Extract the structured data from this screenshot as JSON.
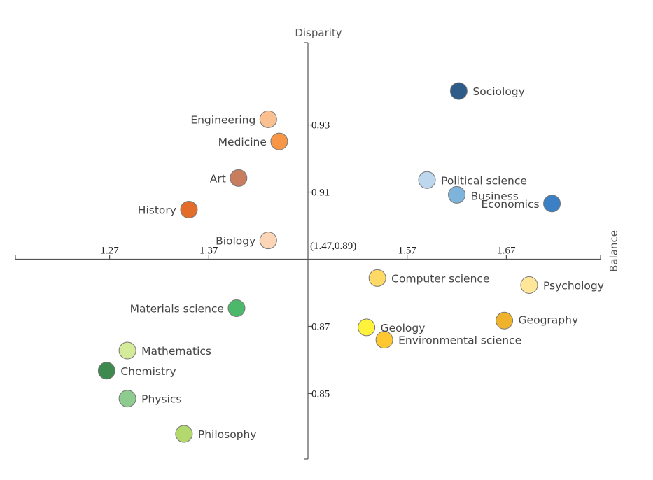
{
  "chart_data": {
    "type": "scatter",
    "xlabel": "Balance",
    "ylabel": "Disparity",
    "origin_label": "(1.47,0.89)",
    "origin": [
      1.47,
      0.89
    ],
    "xlim": [
      1.175,
      1.765
    ],
    "ylim": [
      0.8305,
      0.9545
    ],
    "x_ticks": [
      1.27,
      1.37,
      1.57,
      1.67
    ],
    "x_tick_labels": [
      "1.27",
      "1.37",
      "1.57",
      "1.67"
    ],
    "y_ticks": [
      0.93,
      0.91,
      0.87,
      0.85
    ],
    "y_tick_labels": [
      "0.93",
      "0.91",
      "0.87",
      "0.85"
    ],
    "grid": false,
    "legend": "none",
    "points": [
      {
        "label": "Sociology",
        "x": 1.622,
        "y": 0.9401,
        "color": "#2E5C8A"
      },
      {
        "label": "Engineering",
        "x": 1.43,
        "y": 0.9317,
        "color": "#FAC08F"
      },
      {
        "label": "Medicine",
        "x": 1.441,
        "y": 0.9251,
        "color": "#F79646"
      },
      {
        "label": "Art",
        "x": 1.4,
        "y": 0.9142,
        "color": "#C87D5E"
      },
      {
        "label": "Political science",
        "x": 1.59,
        "y": 0.9136,
        "color": "#BDD7EE"
      },
      {
        "label": "Business",
        "x": 1.62,
        "y": 0.9092,
        "color": "#7EB4DC"
      },
      {
        "label": "Economics",
        "x": 1.716,
        "y": 0.9066,
        "color": "#3B7FC4"
      },
      {
        "label": "History",
        "x": 1.35,
        "y": 0.9048,
        "color": "#E46C2A"
      },
      {
        "label": "Biology",
        "x": 1.43,
        "y": 0.8956,
        "color": "#FBD5B5"
      },
      {
        "label": "Computer science",
        "x": 1.54,
        "y": 0.8844,
        "color": "#FFD966"
      },
      {
        "label": "Psychology",
        "x": 1.693,
        "y": 0.8823,
        "color": "#FFE699"
      },
      {
        "label": "Materials science",
        "x": 1.398,
        "y": 0.8754,
        "color": "#4CB86A"
      },
      {
        "label": "Geography",
        "x": 1.668,
        "y": 0.8717,
        "color": "#EEB22C"
      },
      {
        "label": "Geology",
        "x": 1.529,
        "y": 0.8697,
        "color": "#FFF23A"
      },
      {
        "label": "Environmental science",
        "x": 1.547,
        "y": 0.866,
        "color": "#FFC830"
      },
      {
        "label": "Mathematics",
        "x": 1.288,
        "y": 0.8628,
        "color": "#D4EB9A"
      },
      {
        "label": "Chemistry",
        "x": 1.267,
        "y": 0.8568,
        "color": "#3E8A4E"
      },
      {
        "label": "Physics",
        "x": 1.288,
        "y": 0.8485,
        "color": "#8DCB8E"
      },
      {
        "label": "Philosophy",
        "x": 1.345,
        "y": 0.838,
        "color": "#B3D96E"
      }
    ]
  }
}
